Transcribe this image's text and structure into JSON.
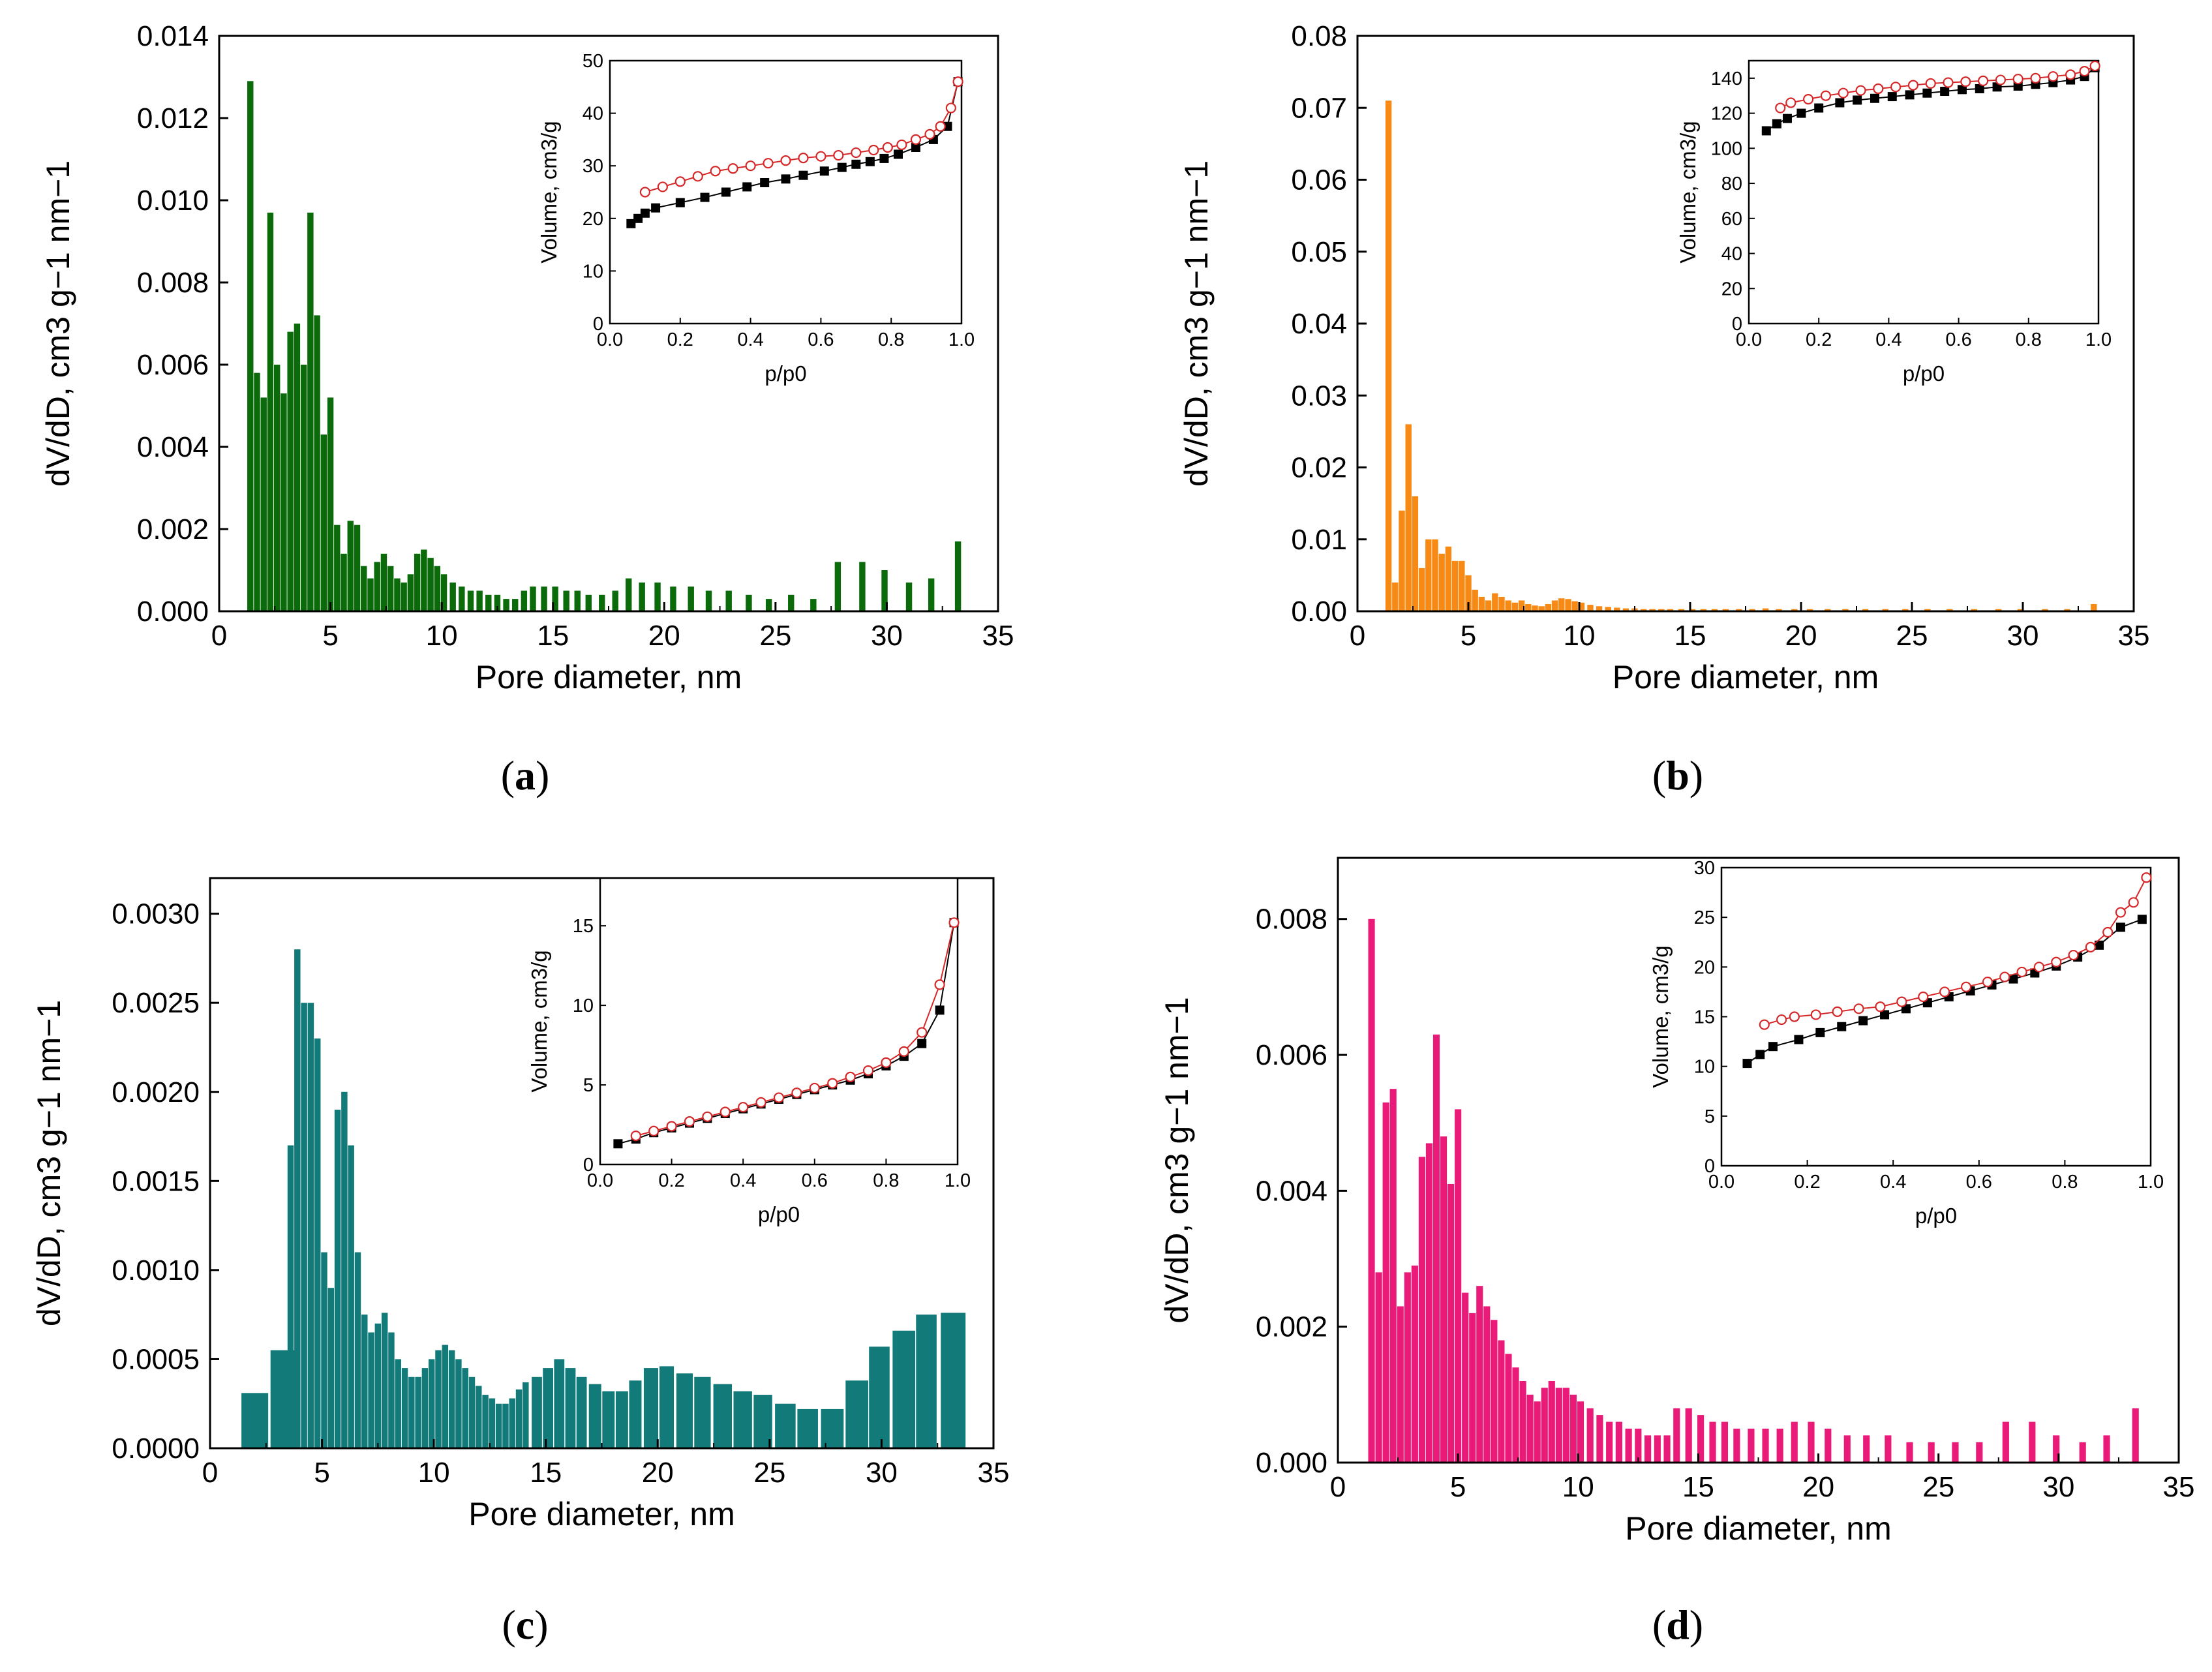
{
  "figure": {
    "panels": [
      {
        "id": "a",
        "label": "a",
        "color": "#0b6b0b"
      },
      {
        "id": "b",
        "label": "b",
        "color": "#f78a14"
      },
      {
        "id": "c",
        "label": "c",
        "color": "#137a7a"
      },
      {
        "id": "d",
        "label": "d",
        "color": "#ea1a78"
      }
    ]
  },
  "chart_data": [
    {
      "id": "a",
      "type": "bar",
      "color": "#0b6b0b",
      "xlabel": "Pore diameter, nm",
      "ylabel": "dV/dD, cm3 g−1 nm−1",
      "xlim": [
        0,
        35
      ],
      "ylim": [
        0,
        0.014
      ],
      "xticks": [
        "0",
        "5",
        "10",
        "15",
        "20",
        "25",
        "30",
        "35"
      ],
      "yticks": [
        "0.000",
        "0.002",
        "0.004",
        "0.006",
        "0.008",
        "0.010",
        "0.012",
        "0.014"
      ],
      "x": [
        1.4,
        1.7,
        2.0,
        2.3,
        2.6,
        2.9,
        3.2,
        3.5,
        3.8,
        4.1,
        4.4,
        4.7,
        5.0,
        5.3,
        5.6,
        5.9,
        6.2,
        6.5,
        6.8,
        7.1,
        7.4,
        7.7,
        8.0,
        8.3,
        8.6,
        8.9,
        9.2,
        9.5,
        9.8,
        10.1,
        10.5,
        10.9,
        11.3,
        11.7,
        12.1,
        12.5,
        12.9,
        13.3,
        13.7,
        14.1,
        14.6,
        15.1,
        15.6,
        16.1,
        16.6,
        17.2,
        17.8,
        18.4,
        19.0,
        19.7,
        20.4,
        21.2,
        22.0,
        22.9,
        23.8,
        24.7,
        25.7,
        26.7,
        27.8,
        28.9,
        29.9,
        31.0,
        32.0,
        33.2
      ],
      "values": [
        0.0129,
        0.0058,
        0.0052,
        0.0097,
        0.006,
        0.0053,
        0.0068,
        0.007,
        0.006,
        0.0097,
        0.0072,
        0.0043,
        0.0052,
        0.0021,
        0.0014,
        0.0022,
        0.0021,
        0.0011,
        0.0008,
        0.0012,
        0.0014,
        0.0011,
        0.0008,
        0.0007,
        0.0009,
        0.0014,
        0.0015,
        0.0013,
        0.0011,
        0.0009,
        0.0007,
        0.0006,
        0.0005,
        0.0005,
        0.0004,
        0.0004,
        0.0003,
        0.0003,
        0.0005,
        0.0006,
        0.0006,
        0.0006,
        0.0005,
        0.0005,
        0.0004,
        0.0004,
        0.0005,
        0.0008,
        0.0007,
        0.0007,
        0.0006,
        0.0006,
        0.0005,
        0.0005,
        0.0004,
        0.0003,
        0.0004,
        0.0003,
        0.0012,
        0.0012,
        0.001,
        0.0007,
        0.0008,
        0.0017
      ],
      "inset": {
        "type": "line",
        "xlabel": "p/p0",
        "ylabel": "Volume, cm3/g",
        "xlim": [
          0.0,
          1.0
        ],
        "ylim": [
          0,
          50
        ],
        "xticks": [
          "0.0",
          "0.2",
          "0.4",
          "0.6",
          "0.8",
          "1.0"
        ],
        "yticks": [
          "0",
          "10",
          "20",
          "30",
          "40",
          "50"
        ],
        "series": [
          {
            "color": "#000000",
            "marker": "square-filled",
            "x": [
              0.06,
              0.08,
              0.1,
              0.13,
              0.2,
              0.27,
              0.33,
              0.39,
              0.44,
              0.5,
              0.55,
              0.61,
              0.66,
              0.7,
              0.74,
              0.78,
              0.82,
              0.87,
              0.92,
              0.96,
              0.99
            ],
            "y": [
              19,
              20,
              21,
              22,
              23,
              24,
              25,
              26,
              26.8,
              27.5,
              28.2,
              29,
              29.7,
              30.3,
              30.8,
              31.4,
              32.2,
              33.5,
              35,
              37.5,
              46
            ]
          },
          {
            "color": "#d62728",
            "marker": "circle-open",
            "x": [
              0.99,
              0.97,
              0.94,
              0.91,
              0.87,
              0.83,
              0.79,
              0.75,
              0.7,
              0.65,
              0.6,
              0.55,
              0.5,
              0.45,
              0.4,
              0.35,
              0.3,
              0.25,
              0.2,
              0.15,
              0.1
            ],
            "y": [
              46,
              41,
              37.5,
              36,
              35,
              34,
              33.5,
              33,
              32.5,
              32,
              31.8,
              31.5,
              31,
              30.5,
              30,
              29.5,
              29,
              28,
              27,
              26,
              25
            ]
          }
        ]
      }
    },
    {
      "id": "b",
      "type": "bar",
      "color": "#f78a14",
      "xlabel": "Pore diameter, nm",
      "ylabel": "dV/dD, cm3 g−1 nm−1",
      "xlim": [
        0,
        35
      ],
      "ylim": [
        0,
        0.08
      ],
      "xticks": [
        "0",
        "5",
        "10",
        "15",
        "20",
        "25",
        "30",
        "35"
      ],
      "yticks": [
        "0.00",
        "0.01",
        "0.02",
        "0.03",
        "0.04",
        "0.05",
        "0.06",
        "0.07",
        "0.08"
      ],
      "x": [
        1.4,
        1.7,
        2.0,
        2.3,
        2.6,
        2.9,
        3.2,
        3.5,
        3.8,
        4.1,
        4.4,
        4.7,
        5.0,
        5.3,
        5.6,
        5.9,
        6.2,
        6.5,
        6.8,
        7.1,
        7.4,
        7.7,
        8.0,
        8.3,
        8.6,
        8.9,
        9.2,
        9.5,
        9.8,
        10.1,
        10.5,
        10.9,
        11.3,
        11.7,
        12.1,
        12.5,
        12.9,
        13.3,
        13.7,
        14.1,
        14.6,
        15.1,
        15.6,
        16.1,
        16.6,
        17.2,
        17.8,
        18.4,
        19.0,
        19.7,
        20.4,
        21.2,
        22.0,
        22.9,
        23.8,
        24.7,
        25.7,
        26.7,
        27.8,
        28.9,
        29.9,
        31.0,
        32.0,
        33.2
      ],
      "values": [
        0.071,
        0.004,
        0.014,
        0.026,
        0.016,
        0.006,
        0.01,
        0.01,
        0.008,
        0.009,
        0.007,
        0.007,
        0.005,
        0.003,
        0.002,
        0.0015,
        0.0025,
        0.002,
        0.0015,
        0.0012,
        0.0015,
        0.001,
        0.0008,
        0.0007,
        0.001,
        0.0015,
        0.0018,
        0.0017,
        0.0014,
        0.0012,
        0.0009,
        0.0007,
        0.0006,
        0.0005,
        0.0004,
        0.0004,
        0.0003,
        0.0003,
        0.0003,
        0.0003,
        0.0003,
        0.0003,
        0.0003,
        0.0003,
        0.0003,
        0.0003,
        0.0003,
        0.0004,
        0.0003,
        0.0003,
        0.0003,
        0.0003,
        0.0003,
        0.0003,
        0.0003,
        0.0003,
        0.0003,
        0.0003,
        0.0003,
        0.0003,
        0.0003,
        0.0003,
        0.0003,
        0.001
      ],
      "inset": {
        "type": "line",
        "xlabel": "p/p0",
        "ylabel": "Volume, cm3/g",
        "xlim": [
          0.0,
          1.0
        ],
        "ylim": [
          0,
          150
        ],
        "xticks": [
          "0.0",
          "0.2",
          "0.4",
          "0.6",
          "0.8",
          "1.0"
        ],
        "yticks": [
          "0",
          "20",
          "40",
          "60",
          "80",
          "100",
          "120",
          "140"
        ],
        "series": [
          {
            "color": "#000000",
            "marker": "square-filled",
            "x": [
              0.05,
              0.08,
              0.11,
              0.15,
              0.2,
              0.26,
              0.31,
              0.36,
              0.41,
              0.46,
              0.51,
              0.56,
              0.61,
              0.66,
              0.71,
              0.77,
              0.82,
              0.87,
              0.92,
              0.96,
              0.99
            ],
            "y": [
              110,
              114,
              117,
              120,
              123,
              126,
              127.5,
              128.5,
              129.5,
              130.5,
              131.5,
              132.5,
              133.5,
              134,
              135,
              135.5,
              136.5,
              137.5,
              139,
              141,
              146
            ]
          },
          {
            "color": "#d62728",
            "marker": "circle-open",
            "x": [
              0.99,
              0.96,
              0.92,
              0.87,
              0.82,
              0.77,
              0.72,
              0.67,
              0.62,
              0.57,
              0.52,
              0.47,
              0.42,
              0.37,
              0.32,
              0.27,
              0.22,
              0.17,
              0.12,
              0.09
            ],
            "y": [
              147,
              144,
              142,
              141,
              140,
              139.5,
              139,
              138.5,
              138,
              137.5,
              137,
              136,
              135,
              134,
              133,
              131.5,
              130,
              128,
              126,
              123
            ]
          }
        ]
      }
    },
    {
      "id": "c",
      "type": "bar",
      "color": "#137a7a",
      "xlabel": "Pore diameter, nm",
      "ylabel": "dV/dD, cm3 g−1 nm−1",
      "xlim": [
        0,
        35
      ],
      "ylim": [
        0,
        0.0032
      ],
      "xticks": [
        "0",
        "5",
        "10",
        "15",
        "20",
        "25",
        "30",
        "35"
      ],
      "yticks": [
        "0.0000",
        "0.0005",
        "0.0010",
        "0.0015",
        "0.0020",
        "0.0025",
        "0.0030"
      ],
      "x": [
        2.0,
        3.3,
        3.6,
        3.9,
        4.2,
        4.5,
        4.8,
        5.1,
        5.4,
        5.7,
        6.0,
        6.3,
        6.6,
        6.9,
        7.2,
        7.5,
        7.8,
        8.1,
        8.4,
        8.7,
        9.0,
        9.3,
        9.6,
        9.9,
        10.2,
        10.5,
        10.8,
        11.1,
        11.4,
        11.7,
        12.0,
        12.3,
        12.6,
        12.9,
        13.2,
        13.5,
        13.8,
        14.1,
        14.6,
        15.1,
        15.6,
        16.1,
        16.6,
        17.2,
        17.8,
        18.4,
        19.0,
        19.7,
        20.4,
        21.2,
        22.0,
        22.9,
        23.8,
        24.7,
        25.7,
        26.7,
        27.8,
        28.9,
        29.9,
        31.0,
        32.0,
        33.2
      ],
      "values": [
        0.00031,
        0.00055,
        0.0017,
        0.0028,
        0.0025,
        0.0025,
        0.0023,
        0.0011,
        0.0009,
        0.0019,
        0.002,
        0.0017,
        0.0011,
        0.00075,
        0.00065,
        0.0007,
        0.00076,
        0.00065,
        0.0005,
        0.00045,
        0.0004,
        0.0004,
        0.00045,
        0.0005,
        0.00055,
        0.00058,
        0.00055,
        0.0005,
        0.00045,
        0.0004,
        0.00035,
        0.0003,
        0.00028,
        0.00025,
        0.00025,
        0.00028,
        0.00033,
        0.00037,
        0.0004,
        0.00045,
        0.0005,
        0.00045,
        0.0004,
        0.00036,
        0.00032,
        0.00032,
        0.00038,
        0.00045,
        0.00046,
        0.00042,
        0.0004,
        0.00036,
        0.00032,
        0.0003,
        0.00025,
        0.00022,
        0.00022,
        0.00038,
        0.00057,
        0.00066,
        0.00075,
        0.00076
      ],
      "inset": {
        "type": "line",
        "xlabel": "p/p0",
        "ylabel": "Volume, cm3/g",
        "xlim": [
          0.0,
          1.0
        ],
        "ylim": [
          0,
          18
        ],
        "xticks": [
          "0.0",
          "0.2",
          "0.4",
          "0.6",
          "0.8",
          "1.0"
        ],
        "yticks": [
          "0",
          "5",
          "10",
          "15"
        ],
        "series": [
          {
            "color": "#000000",
            "marker": "square-filled",
            "x": [
              0.05,
              0.1,
              0.15,
              0.2,
              0.25,
              0.3,
              0.35,
              0.4,
              0.45,
              0.5,
              0.55,
              0.6,
              0.65,
              0.7,
              0.75,
              0.8,
              0.85,
              0.9,
              0.95,
              0.99
            ],
            "y": [
              1.3,
              1.6,
              2.0,
              2.3,
              2.6,
              2.9,
              3.2,
              3.5,
              3.8,
              4.1,
              4.4,
              4.7,
              5.0,
              5.3,
              5.7,
              6.2,
              6.8,
              7.6,
              9.7,
              15.2
            ]
          },
          {
            "color": "#d62728",
            "marker": "circle-open",
            "x": [
              0.99,
              0.95,
              0.9,
              0.85,
              0.8,
              0.75,
              0.7,
              0.65,
              0.6,
              0.55,
              0.5,
              0.45,
              0.4,
              0.35,
              0.3,
              0.25,
              0.2,
              0.15,
              0.1
            ],
            "y": [
              15.2,
              11.3,
              8.3,
              7.1,
              6.4,
              5.9,
              5.5,
              5.1,
              4.8,
              4.5,
              4.2,
              3.9,
              3.6,
              3.3,
              3.0,
              2.7,
              2.4,
              2.1,
              1.8
            ]
          }
        ]
      }
    },
    {
      "id": "d",
      "type": "bar",
      "color": "#ea1a78",
      "xlabel": "Pore diameter, nm",
      "ylabel": "dV/dD, cm3 g−1 nm−1",
      "xlim": [
        0,
        35
      ],
      "ylim": [
        0,
        0.0089
      ],
      "xticks": [
        "0",
        "5",
        "10",
        "15",
        "20",
        "25",
        "30",
        "35"
      ],
      "yticks": [
        "0.000",
        "0.002",
        "0.004",
        "0.006",
        "0.008"
      ],
      "x": [
        1.4,
        1.7,
        2.0,
        2.3,
        2.6,
        2.9,
        3.2,
        3.5,
        3.8,
        4.1,
        4.4,
        4.7,
        5.0,
        5.3,
        5.6,
        5.9,
        6.2,
        6.5,
        6.8,
        7.1,
        7.4,
        7.7,
        8.0,
        8.3,
        8.6,
        8.9,
        9.2,
        9.5,
        9.8,
        10.1,
        10.5,
        10.9,
        11.3,
        11.7,
        12.1,
        12.5,
        12.9,
        13.3,
        13.7,
        14.1,
        14.6,
        15.1,
        15.6,
        16.1,
        16.6,
        17.2,
        17.8,
        18.4,
        19.0,
        19.7,
        20.4,
        21.2,
        22.0,
        22.9,
        23.8,
        24.7,
        25.7,
        26.7,
        27.8,
        28.9,
        29.9,
        31.0,
        32.0,
        33.2
      ],
      "values": [
        0.008,
        0.0028,
        0.0053,
        0.0055,
        0.0023,
        0.0028,
        0.0029,
        0.0045,
        0.0047,
        0.0063,
        0.0048,
        0.0041,
        0.0052,
        0.0025,
        0.0022,
        0.0026,
        0.0023,
        0.0021,
        0.0018,
        0.0016,
        0.0014,
        0.0012,
        0.001,
        0.0009,
        0.0011,
        0.0012,
        0.0011,
        0.0011,
        0.001,
        0.0009,
        0.0008,
        0.0007,
        0.0006,
        0.0006,
        0.0005,
        0.0005,
        0.0004,
        0.0004,
        0.0004,
        0.0008,
        0.0008,
        0.0007,
        0.0006,
        0.0006,
        0.0005,
        0.0005,
        0.0005,
        0.0005,
        0.0006,
        0.0006,
        0.0005,
        0.0004,
        0.0004,
        0.0004,
        0.0003,
        0.0003,
        0.0003,
        0.0003,
        0.0006,
        0.0006,
        0.0004,
        0.0003,
        0.0004,
        0.0008
      ],
      "inset": {
        "type": "line",
        "xlabel": "p/p0",
        "ylabel": "Volume, cm3/g",
        "xlim": [
          0.0,
          1.0
        ],
        "ylim": [
          0,
          30
        ],
        "xticks": [
          "0.0",
          "0.2",
          "0.4",
          "0.6",
          "0.8",
          "1.0"
        ],
        "yticks": [
          "0",
          "5",
          "10",
          "15",
          "20",
          "25",
          "30"
        ],
        "series": [
          {
            "color": "#000000",
            "marker": "square-filled",
            "x": [
              0.06,
              0.09,
              0.12,
              0.18,
              0.23,
              0.28,
              0.33,
              0.38,
              0.43,
              0.48,
              0.53,
              0.58,
              0.63,
              0.68,
              0.73,
              0.78,
              0.83,
              0.88,
              0.93,
              0.98
            ],
            "y": [
              10.3,
              11.2,
              12,
              12.7,
              13.4,
              14,
              14.6,
              15.2,
              15.8,
              16.4,
              17,
              17.6,
              18.2,
              18.8,
              19.4,
              20.1,
              21,
              22.2,
              24,
              24.8
            ]
          },
          {
            "color": "#d62728",
            "marker": "circle-open",
            "x": [
              0.99,
              0.96,
              0.93,
              0.9,
              0.86,
              0.82,
              0.78,
              0.74,
              0.7,
              0.66,
              0.62,
              0.57,
              0.52,
              0.47,
              0.42,
              0.37,
              0.32,
              0.27,
              0.22,
              0.17,
              0.14,
              0.1
            ],
            "y": [
              29,
              26.5,
              25.5,
              23.5,
              22,
              21.2,
              20.5,
              20,
              19.5,
              19,
              18.5,
              18,
              17.5,
              17,
              16.5,
              16,
              15.8,
              15.5,
              15.2,
              15,
              14.7,
              14.2
            ]
          }
        ]
      }
    }
  ]
}
